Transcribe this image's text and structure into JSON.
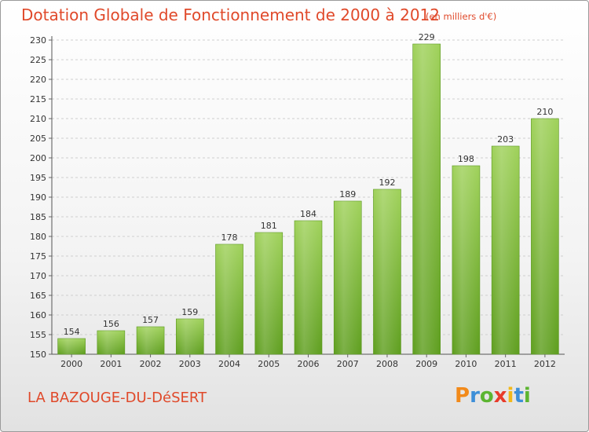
{
  "header": {
    "title": "Dotation Globale de Fonctionnement de 2000 à 2012",
    "subtitle": "(en milliers d'€)"
  },
  "footer": {
    "commune": "LA BAZOUGE-DU-DéSERT",
    "logo_letters": [
      {
        "char": "P",
        "color": "#f28a1a"
      },
      {
        "char": "r",
        "color": "#3d8fd8"
      },
      {
        "char": "o",
        "color": "#5cb531"
      },
      {
        "char": "x",
        "color": "#e83b2a"
      },
      {
        "char": "i",
        "color": "#f2b81a"
      },
      {
        "char": "t",
        "color": "#3d8fd8"
      },
      {
        "char": "i",
        "color": "#5cb531"
      }
    ]
  },
  "chart_data": {
    "type": "bar",
    "categories": [
      "2000",
      "2001",
      "2002",
      "2003",
      "2004",
      "2005",
      "2006",
      "2007",
      "2008",
      "2009",
      "2010",
      "2011",
      "2012"
    ],
    "values": [
      154,
      156,
      157,
      159,
      178,
      181,
      184,
      189,
      192,
      229,
      198,
      203,
      210
    ],
    "ylim": [
      150,
      230
    ],
    "yticks": [
      150,
      155,
      160,
      165,
      170,
      175,
      180,
      185,
      190,
      195,
      200,
      205,
      210,
      215,
      220,
      225,
      230
    ],
    "grid": true,
    "bar_color_top": "#9fd15a",
    "bar_color_bottom": "#5e9e1e"
  }
}
